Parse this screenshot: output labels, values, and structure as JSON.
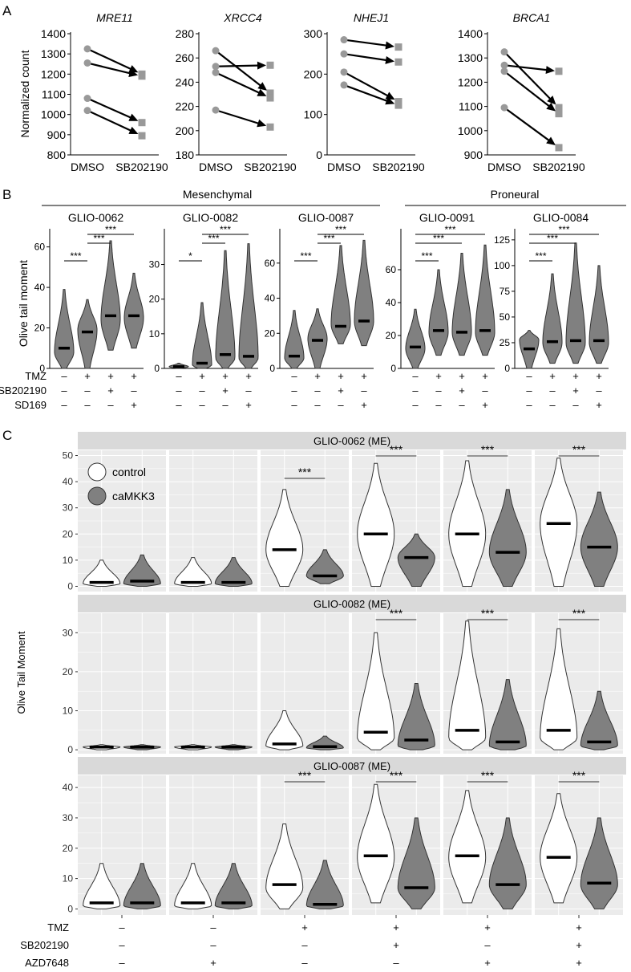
{
  "panel_labels": {
    "a": "A",
    "b": "B",
    "c": "C"
  },
  "colors": {
    "panel_bg": "#ebebeb",
    "strip": "#d9d9d9",
    "grid": "#ffffff",
    "violin": "#808080",
    "line": "#000000",
    "marker": "#999999",
    "control_fill": "#ffffff",
    "camkk3_fill": "#808080"
  },
  "chart_data": [
    {
      "id": "A",
      "type": "line",
      "ylabel": "Normalized count",
      "categories": [
        "DMSO",
        "SB202190"
      ],
      "panels": [
        {
          "title": "MRE11",
          "ylim": [
            800,
            1400
          ],
          "yticks": [
            800,
            900,
            1000,
            1100,
            1200,
            1300,
            1400
          ],
          "pairs": [
            [
              1325,
              1200
            ],
            [
              1255,
              1190
            ],
            [
              1080,
              960
            ],
            [
              1020,
              895
            ]
          ]
        },
        {
          "title": "XRCC4",
          "ylim": [
            180,
            280
          ],
          "yticks": [
            180,
            200,
            220,
            240,
            260,
            280
          ],
          "pairs": [
            [
              266,
              231
            ],
            [
              253,
              254
            ],
            [
              248,
              227
            ],
            [
              217,
              203
            ]
          ]
        },
        {
          "title": "NHEJ1",
          "ylim": [
            0,
            300
          ],
          "yticks": [
            0,
            100,
            200,
            300
          ],
          "pairs": [
            [
              285,
              267
            ],
            [
              250,
              230
            ],
            [
              205,
              132
            ],
            [
              173,
              123
            ]
          ]
        },
        {
          "title": "BRCA1",
          "ylim": [
            900,
            1400
          ],
          "yticks": [
            900,
            1000,
            1100,
            1200,
            1300,
            1400
          ],
          "pairs": [
            [
              1325,
              1095
            ],
            [
              1270,
              1245
            ],
            [
              1245,
              1070
            ],
            [
              1095,
              930
            ]
          ]
        }
      ]
    },
    {
      "id": "B",
      "type": "violin",
      "ylabel": "Olive tail moment",
      "groups": [
        {
          "label": "Mesenchymal"
        },
        {
          "label": "Proneural"
        }
      ],
      "treatments": [
        {
          "label": "TMZ",
          "values": [
            "–",
            "+",
            "+",
            "+"
          ]
        },
        {
          "label": "SB202190",
          "values": [
            "–",
            "–",
            "+",
            "–"
          ]
        },
        {
          "label": "SD169",
          "values": [
            "–",
            "–",
            "–",
            "+"
          ]
        }
      ],
      "panels": [
        {
          "title": "GLIO-0062",
          "ylim": [
            0,
            65
          ],
          "yticks": [
            0,
            20,
            40,
            60
          ],
          "violins": [
            {
              "min": 0,
              "max": 39,
              "median": 10,
              "peak": 8
            },
            {
              "min": 0,
              "max": 34,
              "median": 18,
              "peak": 19
            },
            {
              "min": 9,
              "max": 63,
              "median": 26,
              "peak": 24
            },
            {
              "min": 10,
              "max": 47,
              "median": 26,
              "peak": 25
            }
          ],
          "sig": [
            {
              "from": 1,
              "to": 2,
              "label": "***"
            },
            {
              "from": 2,
              "to": 3,
              "label": "***"
            },
            {
              "from": 2,
              "to": 4,
              "label": "***"
            }
          ]
        },
        {
          "title": "GLIO-0082",
          "ylim": [
            0,
            38
          ],
          "yticks": [
            0,
            10,
            20,
            30
          ],
          "violins": [
            {
              "min": 0,
              "max": 1.5,
              "median": 0.5,
              "peak": 0.5
            },
            {
              "min": 0,
              "max": 19,
              "median": 1.5,
              "peak": 1
            },
            {
              "min": 0,
              "max": 34,
              "median": 4,
              "peak": 3
            },
            {
              "min": 0,
              "max": 36,
              "median": 3.5,
              "peak": 3
            }
          ],
          "sig": [
            {
              "from": 1,
              "to": 2,
              "label": "*"
            },
            {
              "from": 2,
              "to": 3,
              "label": "***"
            },
            {
              "from": 2,
              "to": 4,
              "label": "***"
            }
          ]
        },
        {
          "title": "GLIO-0087",
          "ylim": [
            0,
            75
          ],
          "yticks": [
            0,
            20,
            40,
            60
          ],
          "violins": [
            {
              "min": 0,
              "max": 33,
              "median": 7,
              "peak": 6
            },
            {
              "min": 0,
              "max": 34,
              "median": 16,
              "peak": 17
            },
            {
              "min": 14,
              "max": 70,
              "median": 24,
              "peak": 25
            },
            {
              "min": 13,
              "max": 73,
              "median": 27,
              "peak": 27
            }
          ],
          "sig": [
            {
              "from": 1,
              "to": 2,
              "label": "***"
            },
            {
              "from": 2,
              "to": 3,
              "label": "***"
            },
            {
              "from": 2,
              "to": 4,
              "label": "***"
            }
          ]
        },
        {
          "title": "GLIO-0091",
          "ylim": [
            0,
            80
          ],
          "yticks": [
            0,
            20,
            40,
            60
          ],
          "violins": [
            {
              "min": 0,
              "max": 36,
              "median": 13,
              "peak": 12
            },
            {
              "min": 8,
              "max": 60,
              "median": 23,
              "peak": 22
            },
            {
              "min": 8,
              "max": 70,
              "median": 22,
              "peak": 22
            },
            {
              "min": 8,
              "max": 75,
              "median": 23,
              "peak": 22
            }
          ],
          "sig": [
            {
              "from": 1,
              "to": 2,
              "label": "***"
            },
            {
              "from": 1,
              "to": 3,
              "label": "***"
            },
            {
              "from": 1,
              "to": 4,
              "label": "***"
            }
          ]
        },
        {
          "title": "GLIO-0084",
          "ylim": [
            0,
            128
          ],
          "yticks": [
            0,
            25,
            50,
            75,
            100,
            125
          ],
          "violins": [
            {
              "min": 0,
              "max": 37,
              "median": 19,
              "peak": 28
            },
            {
              "min": 5,
              "max": 92,
              "median": 26,
              "peak": 25
            },
            {
              "min": 5,
              "max": 122,
              "median": 27,
              "peak": 25
            },
            {
              "min": 5,
              "max": 100,
              "median": 27,
              "peak": 25
            }
          ],
          "sig": [
            {
              "from": 1,
              "to": 2,
              "label": "***"
            },
            {
              "from": 1,
              "to": 3,
              "label": "***"
            },
            {
              "from": 1,
              "to": 4,
              "label": "***"
            }
          ]
        }
      ]
    },
    {
      "id": "C",
      "type": "violin",
      "ylabel": "Olive Tail Moment",
      "legend": [
        {
          "label": "control",
          "fill": "#ffffff"
        },
        {
          "label": "caMKK3",
          "fill": "#808080"
        }
      ],
      "treatments": [
        {
          "label": "TMZ",
          "values": [
            "–",
            "–",
            "+",
            "+",
            "+",
            "+"
          ]
        },
        {
          "label": "SB202190",
          "values": [
            "–",
            "–",
            "–",
            "+",
            "–",
            "+"
          ]
        },
        {
          "label": "AZD7648",
          "values": [
            "–",
            "+",
            "–",
            "–",
            "+",
            "+"
          ]
        }
      ],
      "rows": [
        {
          "title": "GLIO-0062 (ME)",
          "ylim": [
            -2,
            52
          ],
          "yticks": [
            0,
            10,
            20,
            30,
            40,
            50
          ],
          "groups": [
            {
              "control": {
                "min": 0,
                "max": 10,
                "median": 1.5,
                "peak": 1
              },
              "camkk3": {
                "min": 0,
                "max": 12,
                "median": 2,
                "peak": 1
              },
              "sig": ""
            },
            {
              "control": {
                "min": 0,
                "max": 11,
                "median": 1.5,
                "peak": 1
              },
              "camkk3": {
                "min": 0,
                "max": 11,
                "median": 1.5,
                "peak": 1
              },
              "sig": ""
            },
            {
              "control": {
                "min": 0,
                "max": 37,
                "median": 14,
                "peak": 14
              },
              "camkk3": {
                "min": 1,
                "max": 14,
                "median": 4,
                "peak": 4
              },
              "sig": "***"
            },
            {
              "control": {
                "min": 0,
                "max": 47,
                "median": 20,
                "peak": 20
              },
              "camkk3": {
                "min": 0,
                "max": 20,
                "median": 11,
                "peak": 11
              },
              "sig": "***"
            },
            {
              "control": {
                "min": 0,
                "max": 48,
                "median": 20,
                "peak": 20
              },
              "camkk3": {
                "min": 0,
                "max": 37,
                "median": 13,
                "peak": 13
              },
              "sig": "***"
            },
            {
              "control": {
                "min": 0,
                "max": 49,
                "median": 24,
                "peak": 24
              },
              "camkk3": {
                "min": 0,
                "max": 36,
                "median": 15,
                "peak": 15
              },
              "sig": "***"
            }
          ]
        },
        {
          "title": "GLIO-0082 (ME)",
          "ylim": [
            -1,
            35
          ],
          "yticks": [
            0,
            10,
            20,
            30
          ],
          "groups": [
            {
              "control": {
                "min": 0,
                "max": 1.3,
                "median": 0.7,
                "peak": 0.7
              },
              "camkk3": {
                "min": 0,
                "max": 1.3,
                "median": 0.7,
                "peak": 0.7
              },
              "sig": ""
            },
            {
              "control": {
                "min": 0,
                "max": 1.3,
                "median": 0.7,
                "peak": 0.7
              },
              "camkk3": {
                "min": 0,
                "max": 1.3,
                "median": 0.7,
                "peak": 0.7
              },
              "sig": ""
            },
            {
              "control": {
                "min": 0,
                "max": 10,
                "median": 1.5,
                "peak": 1
              },
              "camkk3": {
                "min": 0,
                "max": 3.5,
                "median": 0.8,
                "peak": 0.5
              },
              "sig": ""
            },
            {
              "control": {
                "min": 0,
                "max": 30,
                "median": 4.5,
                "peak": 3
              },
              "camkk3": {
                "min": 0,
                "max": 17,
                "median": 2.5,
                "peak": 1
              },
              "sig": "***"
            },
            {
              "control": {
                "min": 0,
                "max": 33,
                "median": 5,
                "peak": 3
              },
              "camkk3": {
                "min": 0,
                "max": 18,
                "median": 2,
                "peak": 1
              },
              "sig": "***"
            },
            {
              "control": {
                "min": 0,
                "max": 31,
                "median": 5,
                "peak": 3
              },
              "camkk3": {
                "min": 0,
                "max": 15,
                "median": 2,
                "peak": 1
              },
              "sig": "***"
            }
          ]
        },
        {
          "title": "GLIO-0087 (ME)",
          "ylim": [
            -2,
            44
          ],
          "yticks": [
            0,
            10,
            20,
            30,
            40
          ],
          "groups": [
            {
              "control": {
                "min": 0,
                "max": 15,
                "median": 2,
                "peak": 1
              },
              "camkk3": {
                "min": 0,
                "max": 15,
                "median": 2,
                "peak": 1
              },
              "sig": ""
            },
            {
              "control": {
                "min": 0,
                "max": 15,
                "median": 2,
                "peak": 1
              },
              "camkk3": {
                "min": 0,
                "max": 15,
                "median": 2,
                "peak": 1
              },
              "sig": ""
            },
            {
              "control": {
                "min": 0,
                "max": 28,
                "median": 8,
                "peak": 7
              },
              "camkk3": {
                "min": 0,
                "max": 16,
                "median": 1.5,
                "peak": 1
              },
              "sig": "***"
            },
            {
              "control": {
                "min": 2,
                "max": 41,
                "median": 17.5,
                "peak": 17
              },
              "camkk3": {
                "min": 0,
                "max": 30,
                "median": 7,
                "peak": 7
              },
              "sig": "***"
            },
            {
              "control": {
                "min": 2,
                "max": 39,
                "median": 17.5,
                "peak": 17
              },
              "camkk3": {
                "min": 0,
                "max": 30,
                "median": 8,
                "peak": 8
              },
              "sig": "***"
            },
            {
              "control": {
                "min": 2,
                "max": 38,
                "median": 17,
                "peak": 17
              },
              "camkk3": {
                "min": 0,
                "max": 30,
                "median": 8.5,
                "peak": 8
              },
              "sig": "***"
            }
          ]
        }
      ]
    }
  ]
}
